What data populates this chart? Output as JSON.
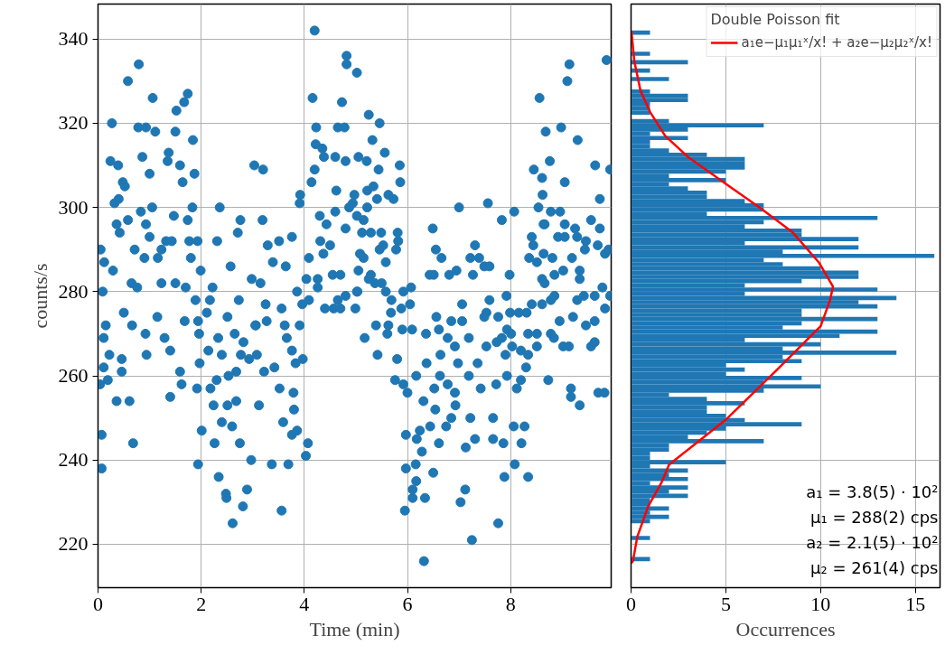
{
  "chart_data": [
    {
      "type": "scatter",
      "xlabel": "Time (min)",
      "ylabel": "counts/s",
      "color": "#1f77b4",
      "marker": "circle",
      "grid": true,
      "xlim": [
        0,
        9.95
      ],
      "ylim": [
        209.7,
        348.3
      ],
      "xticks": [
        0,
        2,
        4,
        6,
        8
      ],
      "yticks": [
        220,
        240,
        260,
        280,
        300,
        320,
        340
      ],
      "x": [
        4.2,
        0.79,
        0.58,
        1.06,
        1.74,
        1.67,
        1.52,
        0.27,
        0.78,
        0.93,
        1.11,
        1.5,
        1.84,
        0.24,
        0.39,
        0.86,
        1.37,
        1.35,
        1.59,
        1.0,
        0.48,
        0.52,
        1.64,
        1.87,
        0.32,
        0.4,
        0.83,
        1.05,
        1.83,
        2.36,
        0.36,
        0.58,
        0.42,
        0.93,
        1.47,
        1.74,
        1.0,
        1.32,
        1.43,
        1.77,
        1.93,
        2.31,
        0.71,
        1.23,
        0.05,
        0.12,
        0.29,
        0.9,
        1.16,
        1.8,
        1.99,
        2.57,
        0.65,
        0.76,
        1.23,
        1.5,
        1.7,
        0.09,
        1.89,
        2.22,
        2.17,
        2.73,
        0.5,
        1.15,
        1.68,
        1.94,
        2.11,
        2.51,
        0.15,
        0.11,
        0.66,
        0.92,
        1.29,
        1.96,
        2.33,
        2.65,
        3.06,
        0.22,
        0.46,
        0.94,
        1.4,
        2.14,
        2.4,
        2.77,
        3.08,
        0.11,
        0.46,
        1.59,
        1.97,
        0.19,
        0.04,
        0.36,
        0.61,
        1.4,
        1.62,
        1.92,
        2.18,
        2.3,
        2.53,
        0.07,
        0.68,
        2.01,
        2.24,
        2.51,
        2.68,
        2.75,
        2.4,
        2.6,
        0.07,
        1.94,
        2.26,
        2.34,
        2.48,
        2.49,
        2.61,
        2.81,
        2.89,
        2.97,
        3.37,
        3.56,
        3.69,
        4.03,
        4.07,
        2.98,
        3.15,
        3.25,
        3.05,
        3.27,
        3.39,
        3.64,
        3.51,
        3.76,
        3.29,
        3.19,
        2.76,
        2.71,
        3.03,
        3.2,
        3.22,
        3.42,
        3.52,
        3.79,
        3.8,
        3.86,
        3.76,
        3.59,
        3.12,
        3.62,
        3.66,
        3.91,
        3.97,
        3.83,
        3.96,
        3.86,
        4.09,
        3.56,
        4.04,
        4.26,
        4.09,
        3.92,
        3.91,
        3.76,
        2.82,
        2.93,
        2.68,
        4.16,
        4.23,
        4.22,
        4.35,
        4.38,
        4.2,
        4.14,
        4.6,
        4.62,
        4.6,
        4.3,
        4.43,
        4.31,
        4.5,
        4.37,
        4.8,
        4.87,
        4.94,
        4.97,
        4.82,
        4.82,
        5.02,
        4.73,
        4.65,
        4.78,
        4.8,
        4.55,
        4.7,
        4.26,
        4.4,
        4.57,
        4.7,
        4.99,
        4.65,
        4.8,
        5.02,
        5.25,
        5.46,
        5.32,
        5.56,
        5.05,
        5.21,
        5.44,
        5.85,
        5.86,
        5.22,
        5.34,
        5.41,
        5.63,
        5.73,
        5.22,
        5.02,
        5.15,
        5.12,
        5.29,
        5.49,
        5.81,
        5.82,
        5.53,
        5.46,
        5.78,
        5.08,
        5.15,
        5.58,
        5.05,
        5.29,
        5.25,
        5.37,
        5.5,
        5.03,
        5.58,
        5.69,
        5.68,
        5.88,
        6.05,
        6.07,
        5.92,
        5.39,
        5.63,
        5.61,
        5.17,
        5.9,
        6.09,
        5.42,
        5.8,
        5.76,
        5.92,
        6.0,
        6.17,
        5.97,
        6.31,
        6.54,
        6.44,
        6.24,
        6.18,
        6.28,
        5.97,
        6.16,
        6.5,
        6.17,
        6.1,
        6.1,
        6.34,
        5.95,
        6.32,
        7.12,
        7.03,
        7.25,
        7.76,
        7.88,
        8.08,
        8.34,
        7.13,
        7.31,
        6.61,
        6.75,
        6.85,
        7.22,
        7.66,
        7.66,
        7.86,
        8.21,
        8.06,
        8.27,
        6.93,
        6.92,
        6.52,
        6.78,
        6.63,
        7.19,
        7.42,
        7.72,
        7.93,
        8.12,
        8.2,
        8.73,
        9.17,
        9.17,
        9.34,
        9.7,
        9.82,
        6.37,
        6.64,
        6.98,
        7.36,
        7.19,
        6.92,
        6.78,
        6.61,
        6.36,
        6.56,
        6.85,
        7.06,
        7.06,
        7.53,
        7.73,
        7.9,
        8.03,
        8.2,
        8.3,
        8.34,
        8.51,
        8.34,
        8.51,
        8.78,
        9.02,
        9.13,
        9.56,
        9.63,
        8.84,
        7.53,
        7.49,
        7.76,
        7.99,
        8.16,
        8.31,
        7.93,
        8.01,
        7.83,
        7.92,
        7.59,
        8.41,
        8.61,
        8.78,
        8.85,
        8.95,
        9.21,
        9.46,
        9.63,
        9.29,
        9.42,
        9.63,
        9.78,
        9.83,
        9.93,
        6.51,
        6.43,
        6.81,
        6.95,
        7.27,
        7.98,
        8.61,
        8.66,
        8.85,
        9.02,
        9.34,
        9.34,
        6.49,
        6.55,
        6.66,
        7.22,
        7.31,
        7.39,
        7.49,
        7.59,
        7.0,
        7.56,
        7.83,
        8.07,
        8.41,
        8.44,
        8.64,
        8.36,
        8.51,
        8.64,
        8.81,
        9.19,
        8.92,
        9.05,
        9.25,
        9.29,
        9.44,
        9.46,
        9.56,
        9.73,
        9.69,
        9.83,
        9.9,
        8.54,
        8.78,
        8.96,
        8.66,
        9.05,
        8.45,
        8.61,
        8.62,
        9.05,
        9.64,
        9.73,
        9.93,
        8.56,
        9.1,
        9.14,
        9.86,
        8.98,
        8.68,
        9.3,
        8.76
      ],
      "values": [
        342,
        334,
        330,
        326,
        327,
        325,
        323,
        320,
        319,
        319,
        318,
        318,
        316,
        311,
        310,
        312,
        313,
        311,
        310,
        308,
        306,
        305,
        306,
        308,
        301,
        302,
        299,
        300,
        300,
        300,
        296,
        297,
        294,
        296,
        298,
        297,
        293,
        292,
        292,
        292,
        292,
        292,
        290,
        290,
        290,
        287,
        285,
        288,
        288,
        288,
        285,
        286,
        282,
        281,
        282,
        282,
        281,
        280,
        278,
        281,
        278,
        278,
        275,
        274,
        273,
        273,
        275,
        274,
        272,
        269,
        272,
        270,
        269,
        270,
        269,
        270,
        272,
        265,
        264,
        265,
        266,
        266,
        265,
        265,
        265,
        262,
        261,
        261,
        263,
        259,
        258,
        254,
        254,
        255,
        258,
        257,
        257,
        259,
        260,
        246,
        244,
        247,
        253,
        253,
        254,
        244,
        249,
        248,
        238,
        239,
        244,
        236,
        232,
        231,
        225,
        229,
        233,
        240,
        239,
        228,
        239,
        241,
        244,
        283,
        282,
        277,
        272,
        273,
        287,
        286,
        292,
        293,
        291,
        297,
        297,
        294,
        310,
        309,
        261,
        262,
        257,
        256,
        252,
        247,
        246,
        249,
        253,
        272,
        269,
        272,
        264,
        263,
        277,
        280,
        278,
        276,
        283,
        281,
        288,
        303,
        301,
        266,
        268,
        264,
        261,
        326,
        319,
        315,
        314,
        312,
        309,
        306,
        312,
        304,
        299,
        298,
        296,
        292,
        291,
        289,
        295,
        300,
        301,
        303,
        336,
        334,
        332,
        325,
        319,
        319,
        311,
        284,
        284,
        283,
        276,
        276,
        276,
        276,
        278,
        279,
        280,
        322,
        320,
        316,
        313,
        312,
        311,
        309,
        310,
        306,
        304,
        305,
        302,
        303,
        302,
        300,
        298,
        297,
        294,
        294,
        294,
        294,
        292,
        291,
        290,
        290,
        289,
        288,
        287,
        285,
        284,
        283,
        282,
        282,
        280,
        280,
        278,
        275,
        276,
        277,
        281,
        280,
        272,
        272,
        270,
        269,
        271,
        271,
        265,
        264,
        259,
        258,
        256,
        260,
        246,
        254,
        252,
        248,
        247,
        245,
        242,
        238,
        239,
        237,
        235,
        233,
        231,
        231,
        228,
        216,
        233,
        230,
        221,
        225,
        236,
        239,
        236,
        243,
        245,
        244,
        248,
        250,
        250,
        250,
        245,
        244,
        244,
        248,
        248,
        253,
        256,
        257,
        258,
        260,
        260,
        257,
        258,
        260,
        257,
        259,
        259,
        257,
        255,
        253,
        256,
        256,
        263,
        265,
        263,
        263,
        269,
        267,
        269,
        271,
        270,
        274,
        273,
        273,
        277,
        267,
        268,
        265,
        267,
        266,
        262,
        265,
        267,
        270,
        270,
        270,
        267,
        267,
        267,
        268,
        269,
        275,
        274,
        274,
        275,
        275,
        275,
        271,
        270,
        269,
        279,
        278,
        277,
        277,
        278,
        279,
        273,
        274,
        272,
        273,
        278,
        279,
        279,
        281,
        276,
        279,
        284,
        284,
        284,
        285,
        284,
        284,
        283,
        282,
        284,
        285,
        285,
        283,
        295,
        290,
        288,
        288,
        291,
        288,
        286,
        286,
        300,
        301,
        297,
        299,
        293,
        291,
        296,
        288,
        287,
        289,
        288,
        288,
        293,
        293,
        295,
        293,
        290,
        292,
        297,
        295,
        291,
        289,
        290,
        300,
        299,
        299,
        296,
        296,
        309,
        307,
        303,
        306,
        310,
        302,
        309,
        326,
        330,
        334,
        335,
        319,
        318,
        316,
        311
      ]
    },
    {
      "type": "histogram",
      "orientation": "horizontal",
      "color": "#1f77b4",
      "xlabel": "Occurrences",
      "grid": true,
      "tick_labels": "x",
      "xlim": [
        0,
        16.3
      ],
      "xticks": [
        0,
        5,
        10,
        15
      ],
      "ylim": [
        209.7,
        348.3
      ],
      "yticks": [
        220,
        240,
        260,
        280,
        300,
        320,
        340
      ],
      "bins": [
        216,
        217,
        218,
        219,
        220,
        221,
        222,
        223,
        224,
        225,
        226,
        227,
        228,
        229,
        230,
        231,
        232,
        233,
        234,
        235,
        236,
        237,
        238,
        239,
        240,
        241,
        242,
        243,
        244,
        245,
        246,
        247,
        248,
        249,
        250,
        251,
        252,
        253,
        254,
        255,
        256,
        257,
        258,
        259,
        260,
        261,
        262,
        263,
        264,
        265,
        266,
        267,
        268,
        269,
        270,
        271,
        272,
        273,
        274,
        275,
        276,
        277,
        278,
        279,
        280,
        281,
        282,
        283,
        284,
        285,
        286,
        287,
        288,
        289,
        290,
        291,
        292,
        293,
        294,
        295,
        296,
        297,
        298,
        299,
        300,
        301,
        302,
        303,
        304,
        305,
        306,
        307,
        308,
        309,
        310,
        311,
        312,
        313,
        314,
        315,
        316,
        317,
        318,
        319,
        320,
        321,
        322,
        323,
        324,
        325,
        326,
        327,
        328,
        329,
        330,
        331,
        332,
        333,
        334,
        335,
        336,
        337,
        338,
        339,
        340,
        341,
        342
      ],
      "values": [
        1,
        0,
        0,
        0,
        0,
        1,
        0,
        0,
        0,
        1,
        2,
        1,
        2,
        1,
        1,
        3,
        2,
        3,
        1,
        3,
        2,
        3,
        1,
        5,
        1,
        1,
        2,
        2,
        7,
        3,
        4,
        5,
        9,
        6,
        5,
        4,
        4,
        6,
        4,
        2,
        7,
        10,
        7,
        9,
        5,
        6,
        5,
        9,
        8,
        14,
        8,
        10,
        6,
        11,
        13,
        8,
        9,
        13,
        9,
        9,
        13,
        12,
        14,
        6,
        13,
        6,
        9,
        12,
        12,
        10,
        8,
        7,
        16,
        8,
        12,
        6,
        12,
        9,
        9,
        6,
        7,
        13,
        4,
        7,
        7,
        6,
        4,
        4,
        3,
        2,
        5,
        2,
        5,
        6,
        6,
        6,
        4,
        2,
        1,
        1,
        3,
        1,
        3,
        7,
        2,
        0,
        1,
        1,
        1,
        3,
        3,
        1,
        0,
        0,
        2,
        0,
        1,
        0,
        3,
        0,
        1,
        0,
        0,
        0,
        0,
        1
      ],
      "legend": "top right",
      "legend_title": "Double Poisson fit",
      "series": [
        {
          "type": "line",
          "name": "a₁e−μ₁μ₁ˣ/x! + a₂e−μ₂μ₂ˣ/x!",
          "color": "#ff0000",
          "x": [
            215.5,
            216,
            221.8,
            229,
            234.6,
            238.9,
            249.6,
            261,
            271.8,
            278,
            281.2,
            287,
            294.2,
            299.9,
            305.6,
            312,
            317,
            322.7,
            327.7,
            334.8,
            341.9
          ],
          "values": [
            0.0,
            0.1,
            0.33,
            0.9,
            1.6,
            2.0,
            5.0,
            7.6,
            10.0,
            10.5,
            10.65,
            9.9,
            8.5,
            6.8,
            5.0,
            3.0,
            1.8,
            1.0,
            0.5,
            0.17,
            0.02
          ]
        }
      ],
      "annotations": [
        "a₁ = 3.8(5) · 10²",
        "μ₁ = 288(2) cps",
        "a₂ = 2.1(5) · 10²",
        "μ₂ = 261(4) cps"
      ]
    }
  ]
}
